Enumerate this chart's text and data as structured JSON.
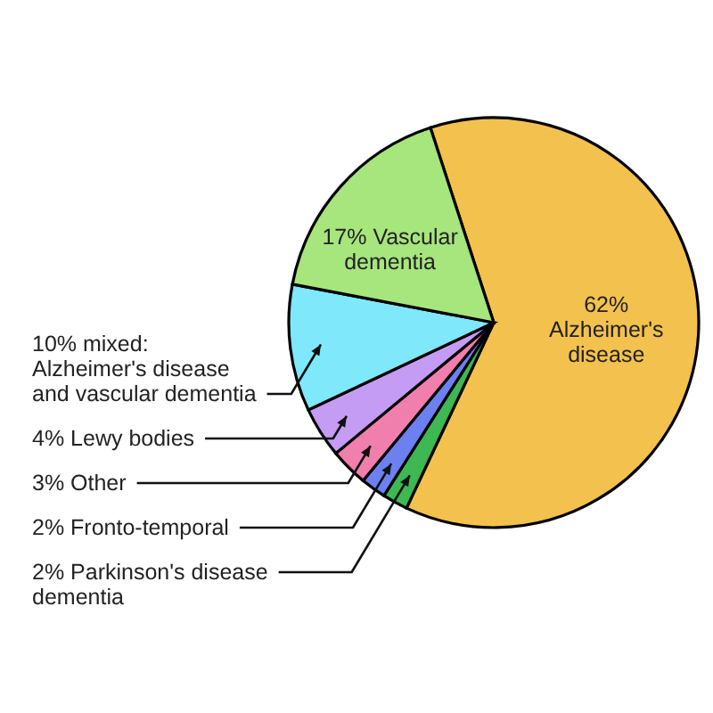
{
  "chart_data": {
    "type": "pie",
    "categories": [
      "Alzheimer's disease",
      "Parkinson's disease dementia",
      "Fronto-temporal",
      "Other",
      "Lewy bodies",
      "mixed: Alzheimer's disease and vascular dementia",
      "Vascular dementia"
    ],
    "values": [
      62,
      2,
      2,
      3,
      4,
      10,
      17
    ],
    "value_labels": [
      "62%",
      "2%",
      "2%",
      "3%",
      "4%",
      "10%",
      "17%"
    ],
    "colors": [
      "#f3c14d",
      "#3db853",
      "#6c80f0",
      "#f07fae",
      "#c59cf4",
      "#7fe8fb",
      "#a7e57d"
    ]
  }
}
